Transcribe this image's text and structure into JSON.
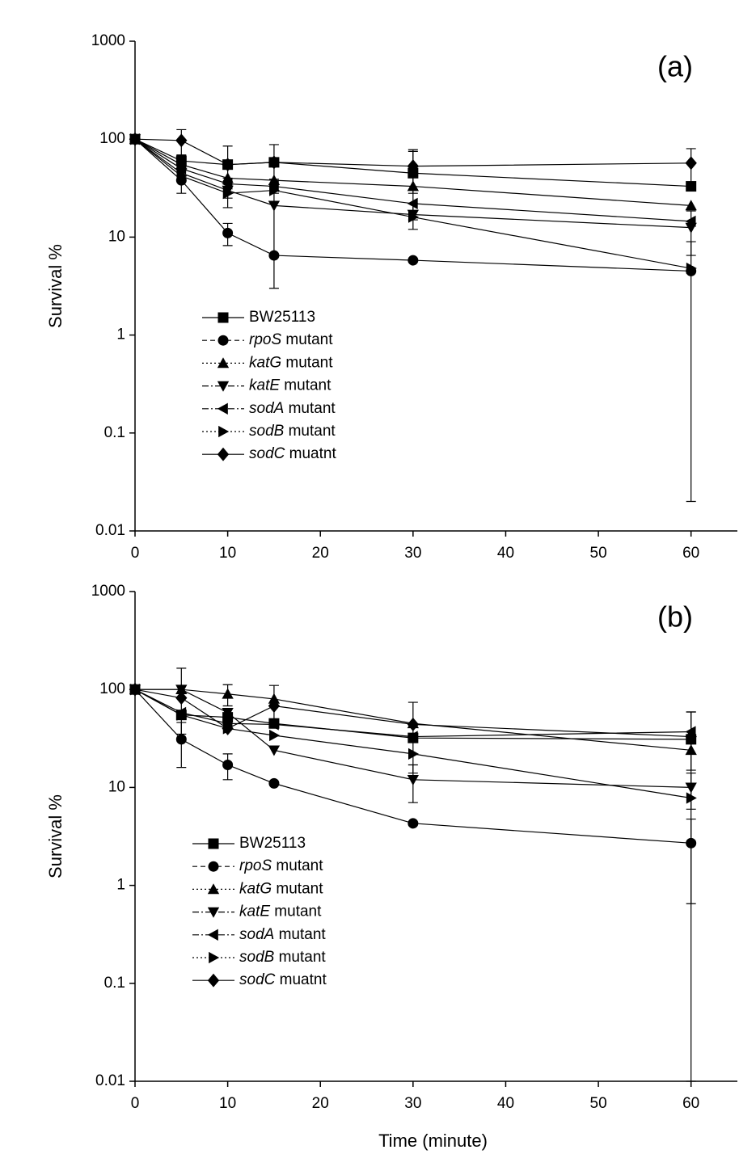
{
  "chart_data": [
    {
      "type": "line",
      "panel_label": "(a)",
      "y_label": "Survival %",
      "y_scale": "log",
      "legend": "left",
      "xlim": [
        0,
        65
      ],
      "xticks": [
        0,
        10,
        20,
        30,
        40,
        50,
        60
      ],
      "ylim": [
        0.01,
        1000
      ],
      "yticks": [
        0.01,
        0.1,
        1,
        10,
        100,
        1000
      ],
      "x": [
        0,
        5,
        10,
        15,
        30,
        60
      ],
      "series": [
        {
          "name": "BW25113",
          "color": "#000000",
          "marker": "square",
          "dash": "solid",
          "values": [
            100,
            60,
            55,
            58,
            45,
            33
          ],
          "errors": [
            null,
            8,
            30,
            null,
            30,
            null
          ]
        },
        {
          "name": "rpoS mutant",
          "color": "#000000",
          "marker": "circle",
          "dash": "dashed",
          "values": [
            100,
            38,
            11,
            6.5,
            5.8,
            4.5
          ],
          "errors": [
            null,
            10,
            2.8,
            null,
            null,
            4.48
          ]
        },
        {
          "name": "katG mutant",
          "color": "#000000",
          "marker": "triangle-up",
          "dash": "dotted",
          "values": [
            100,
            55,
            40,
            38,
            33,
            21
          ],
          "errors": [
            null,
            null,
            null,
            null,
            null,
            null
          ]
        },
        {
          "name": "katE mutant",
          "color": "#000000",
          "marker": "triangle-down",
          "dash": "dashdot",
          "values": [
            100,
            45,
            30,
            21,
            17,
            12.5
          ],
          "errors": [
            null,
            null,
            10,
            18,
            5,
            6
          ]
        },
        {
          "name": "sodA mutant",
          "color": "#000000",
          "marker": "triangle-left",
          "dash": "dashdot",
          "values": [
            100,
            50,
            35,
            33,
            22,
            14.5
          ],
          "errors": [
            null,
            null,
            null,
            null,
            null,
            null
          ]
        },
        {
          "name": "sodB mutant",
          "color": "#000000",
          "marker": "triangle-right",
          "dash": "dotted",
          "values": [
            100,
            42,
            28,
            30,
            16,
            4.8
          ],
          "errors": [
            null,
            null,
            null,
            null,
            null,
            null
          ]
        },
        {
          "name": "sodC muatnt",
          "color": "#000000",
          "marker": "diamond",
          "dash": "solid",
          "values": [
            100,
            97,
            55,
            58,
            53,
            57
          ],
          "errors": [
            null,
            28,
            null,
            30,
            25,
            23
          ]
        }
      ]
    },
    {
      "type": "line",
      "panel_label": "(b)",
      "y_label": "Survival %",
      "x_label": "Time (minute)",
      "y_scale": "log",
      "legend": "left",
      "xlim": [
        0,
        65
      ],
      "xticks": [
        0,
        10,
        20,
        30,
        40,
        50,
        60
      ],
      "ylim": [
        0.01,
        1000
      ],
      "yticks": [
        0.01,
        0.1,
        1,
        10,
        100,
        1000
      ],
      "x": [
        0,
        5,
        10,
        15,
        30,
        60
      ],
      "series": [
        {
          "name": "BW25113",
          "color": "#000000",
          "marker": "square",
          "dash": "solid",
          "values": [
            100,
            55,
            52,
            45,
            32,
            31
          ],
          "errors": [
            null,
            null,
            null,
            null,
            null,
            null
          ]
        },
        {
          "name": "rpoS mutant",
          "color": "#000000",
          "marker": "circle",
          "dash": "dashed",
          "values": [
            100,
            31,
            17,
            11,
            4.3,
            2.7
          ],
          "errors": [
            null,
            15,
            5,
            null,
            null,
            2.05
          ]
        },
        {
          "name": "katG mutant",
          "color": "#000000",
          "marker": "triangle-up",
          "dash": "dotted",
          "values": [
            100,
            100,
            90,
            80,
            45,
            24
          ],
          "errors": [
            null,
            null,
            22,
            30,
            null,
            35
          ]
        },
        {
          "name": "katE mutant",
          "color": "#000000",
          "marker": "triangle-down",
          "dash": "dashdot",
          "values": [
            100,
            100,
            58,
            24,
            12,
            10
          ],
          "errors": [
            null,
            65,
            null,
            null,
            5,
            4
          ]
        },
        {
          "name": "sodA mutant",
          "color": "#000000",
          "marker": "triangle-left",
          "dash": "dashdot",
          "values": [
            100,
            58,
            45,
            44,
            33,
            37
          ],
          "errors": [
            null,
            null,
            null,
            null,
            null,
            22
          ]
        },
        {
          "name": "sodB mutant",
          "color": "#000000",
          "marker": "triangle-right",
          "dash": "dotted",
          "values": [
            100,
            55,
            40,
            34,
            22,
            7.8
          ],
          "errors": [
            null,
            null,
            null,
            null,
            null,
            null
          ]
        },
        {
          "name": "sodC muatnt",
          "color": "#000000",
          "marker": "diamond",
          "dash": "solid",
          "values": [
            100,
            82,
            40,
            68,
            44,
            33
          ],
          "errors": [
            null,
            null,
            null,
            null,
            30,
            null
          ]
        }
      ]
    }
  ]
}
